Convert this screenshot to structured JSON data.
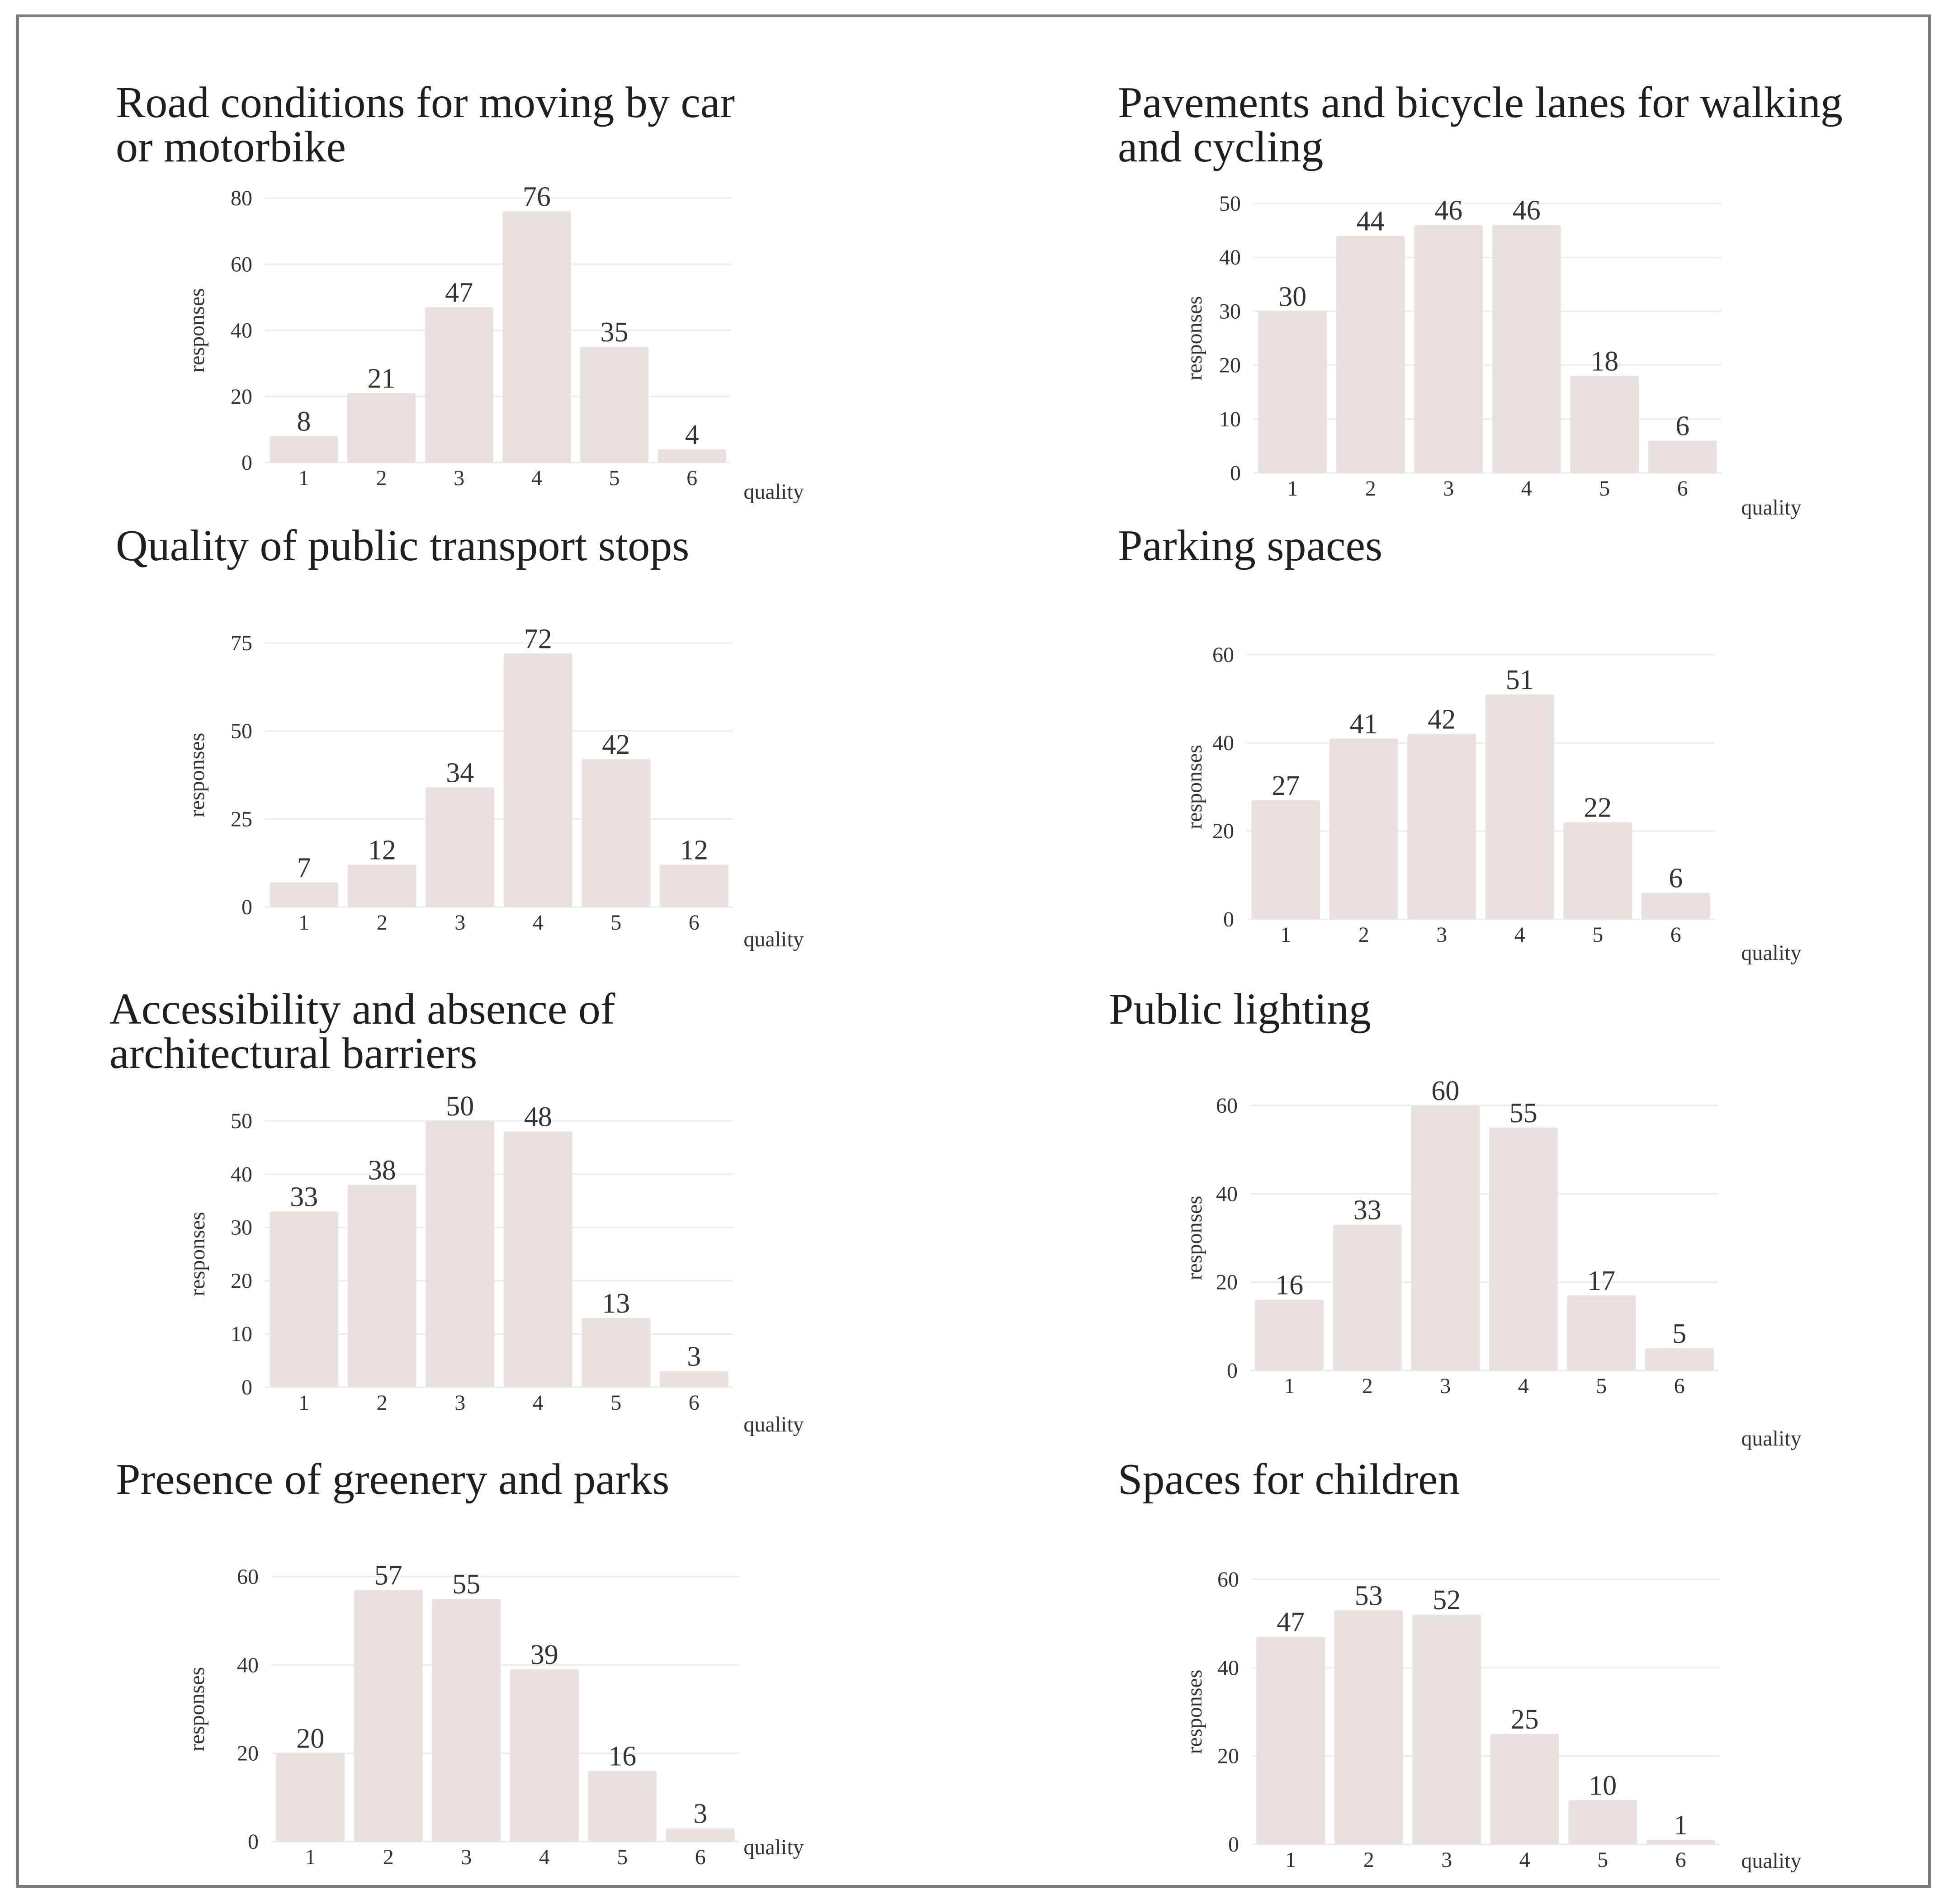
{
  "bar_color": "#e8e1de",
  "chart_data": [
    {
      "type": "bar",
      "title": "Road conditions for moving by car or motorbike",
      "title_lines": [
        "Road conditions for moving by car",
        "or motorbike"
      ],
      "categories": [
        "1",
        "2",
        "3",
        "4",
        "5",
        "6"
      ],
      "values": [
        8,
        21,
        47,
        76,
        35,
        4
      ],
      "value_labels": [
        "8",
        "21",
        "47",
        "76",
        "35",
        "4"
      ],
      "xlabel": "quality",
      "ylabel": "responses",
      "ylim": [
        0,
        80
      ],
      "yticks": [
        0,
        20,
        40,
        60,
        80
      ],
      "ytick_labels": [
        "0",
        "20",
        "40",
        "60",
        "80"
      ]
    },
    {
      "type": "bar",
      "title": "Pavements and bicycle lanes for walking and cycling",
      "title_lines": [
        "Pavements and bicycle lanes for walking",
        "and cycling"
      ],
      "categories": [
        "1",
        "2",
        "3",
        "4",
        "5",
        "6"
      ],
      "values": [
        30,
        44,
        46,
        46,
        18,
        6
      ],
      "value_labels": [
        "30",
        "44",
        "46",
        "46",
        "18",
        "6"
      ],
      "xlabel": "quality",
      "ylabel": "responses",
      "ylim": [
        0,
        50
      ],
      "yticks": [
        0,
        10,
        20,
        30,
        40,
        50
      ],
      "ytick_labels": [
        "0",
        "10",
        "20",
        "30",
        "40",
        "50"
      ]
    },
    {
      "type": "bar",
      "title": "Quality of public transport stops",
      "title_lines": [
        "Quality of public transport stops"
      ],
      "categories": [
        "1",
        "2",
        "3",
        "4",
        "5",
        "6"
      ],
      "values": [
        7,
        12,
        34,
        72,
        42,
        12
      ],
      "value_labels": [
        "7",
        "12",
        "34",
        "72",
        "42",
        "12"
      ],
      "xlabel": "quality",
      "ylabel": "responses",
      "ylim": [
        0,
        75
      ],
      "yticks": [
        0,
        25,
        50,
        75
      ],
      "ytick_labels": [
        "0",
        "25",
        "50",
        "75"
      ]
    },
    {
      "type": "bar",
      "title": "Parking spaces",
      "title_lines": [
        "Parking spaces"
      ],
      "categories": [
        "1",
        "2",
        "3",
        "4",
        "5",
        "6"
      ],
      "values": [
        27,
        41,
        42,
        51,
        22,
        6
      ],
      "value_labels": [
        "27",
        "41",
        "42",
        "51",
        "22",
        "6"
      ],
      "xlabel": "quality",
      "ylabel": "responses",
      "ylim": [
        0,
        60
      ],
      "yticks": [
        0,
        20,
        40,
        60
      ],
      "ytick_labels": [
        "0",
        "20",
        "40",
        "60"
      ]
    },
    {
      "type": "bar",
      "title": "Accessibility and absence of architectural barriers",
      "title_lines": [
        "Accessibility and absence of",
        "architectural barriers"
      ],
      "categories": [
        "1",
        "2",
        "3",
        "4",
        "5",
        "6"
      ],
      "values": [
        33,
        38,
        50,
        48,
        13,
        3
      ],
      "value_labels": [
        "33",
        "38",
        "50",
        "48",
        "13",
        "3"
      ],
      "xlabel": "quality",
      "ylabel": "responses",
      "ylim": [
        0,
        50
      ],
      "yticks": [
        0,
        10,
        20,
        30,
        40,
        50
      ],
      "ytick_labels": [
        "0",
        "10",
        "20",
        "30",
        "40",
        "50"
      ]
    },
    {
      "type": "bar",
      "title": "Public lighting",
      "title_lines": [
        "Public lighting"
      ],
      "categories": [
        "1",
        "2",
        "3",
        "4",
        "5",
        "6"
      ],
      "values": [
        16,
        33,
        60,
        55,
        17,
        5
      ],
      "value_labels": [
        "16",
        "33",
        "60",
        "55",
        "17",
        "5"
      ],
      "xlabel": "quality",
      "ylabel": "responses",
      "ylim": [
        0,
        60
      ],
      "yticks": [
        0,
        20,
        40,
        60
      ],
      "ytick_labels": [
        "0",
        "20",
        "40",
        "60"
      ]
    },
    {
      "type": "bar",
      "title": "Presence of greenery and parks",
      "title_lines": [
        "Presence of greenery and parks"
      ],
      "categories": [
        "1",
        "2",
        "3",
        "4",
        "5",
        "6"
      ],
      "values": [
        20,
        57,
        55,
        39,
        16,
        3
      ],
      "value_labels": [
        "20",
        "57",
        "55",
        "39",
        "16",
        "3"
      ],
      "xlabel": "quality",
      "ylabel": "responses",
      "ylim": [
        0,
        60
      ],
      "yticks": [
        0,
        20,
        40,
        60
      ],
      "ytick_labels": [
        "0",
        "20",
        "40",
        "60"
      ]
    },
    {
      "type": "bar",
      "title": "Spaces for children",
      "title_lines": [
        "Spaces for children"
      ],
      "categories": [
        "1",
        "2",
        "3",
        "4",
        "5",
        "6"
      ],
      "values": [
        47,
        53,
        52,
        25,
        10,
        1
      ],
      "value_labels": [
        "47",
        "53",
        "52",
        "25",
        "10",
        "1"
      ],
      "xlabel": "quality",
      "ylabel": "responses",
      "ylim": [
        0,
        60
      ],
      "yticks": [
        0,
        20,
        40,
        60
      ],
      "ytick_labels": [
        "0",
        "20",
        "40",
        "60"
      ]
    }
  ]
}
